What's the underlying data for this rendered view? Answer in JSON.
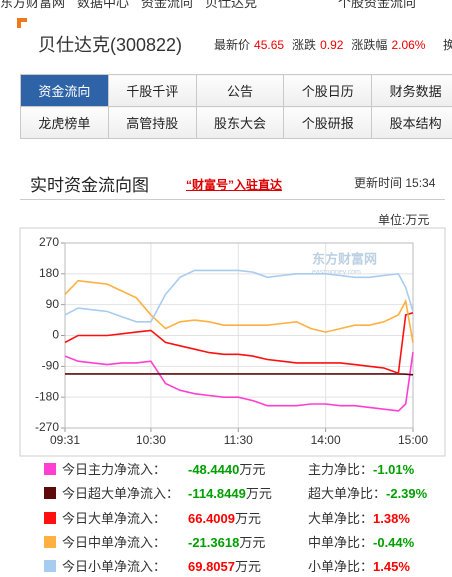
{
  "breadcrumb": [
    "东方财富网",
    "数据中心",
    "资金流向",
    "贝仕达克"
  ],
  "breadcrumb_right": "个股资金流向",
  "header": {
    "title": "贝仕达克(300822)",
    "quotes": [
      {
        "label": "最新价",
        "value": "45.65"
      },
      {
        "label": "涨跌",
        "value": "0.92"
      },
      {
        "label": "涨跌幅",
        "value": "2.06%"
      }
    ],
    "cut_label": "换"
  },
  "nav": [
    [
      "资金流向",
      "千股千评",
      "公告",
      "个股日历",
      "财务数据"
    ],
    [
      "龙虎榜单",
      "高管持股",
      "股东大会",
      "个股研报",
      "股本结构"
    ]
  ],
  "section": {
    "title": "实时资金流向图",
    "link": "“财富号”入驻直达",
    "update_label": "更新时间",
    "update_time": "15:34"
  },
  "chart_data": {
    "type": "line",
    "unit": "单位:万元",
    "watermark": "东方财富网",
    "watermark_sub": "eastmoney.com",
    "x": [
      1,
      10,
      20,
      30,
      40,
      50,
      60,
      70,
      80,
      90,
      100,
      110,
      120,
      130,
      140,
      150,
      160,
      170,
      180,
      190,
      200,
      210,
      220,
      230,
      235,
      240
    ],
    "xlim": [
      1,
      240
    ],
    "xticks": [
      {
        "value": 1,
        "label": "09:31"
      },
      {
        "value": 60,
        "label": "10:30"
      },
      {
        "value": 120,
        "label": "11:30"
      },
      {
        "value": 180,
        "label": "14:00"
      },
      {
        "value": 240,
        "label": "15:00"
      }
    ],
    "ylim": [
      -270,
      270
    ],
    "yticks": [
      -270,
      -180,
      -90,
      0,
      90,
      180,
      270
    ],
    "grid": true,
    "series": [
      {
        "name": "今日主力净流入：",
        "color": "#ff3fd0",
        "values": [
          -60,
          -75,
          -80,
          -85,
          -80,
          -80,
          -75,
          -140,
          -160,
          -170,
          -175,
          -180,
          -180,
          -190,
          -205,
          -205,
          -205,
          -200,
          -200,
          -205,
          -205,
          -210,
          -215,
          -220,
          -200,
          -48.444
        ]
      },
      {
        "name": "今日超大单净流入：",
        "color": "#5c0a0a",
        "values": [
          -112,
          -112,
          -112,
          -112,
          -112,
          -112,
          -112,
          -112,
          -112,
          -112,
          -112,
          -112,
          -112,
          -112,
          -112,
          -112,
          -112,
          -112,
          -112,
          -112,
          -112,
          -112,
          -112,
          -112,
          -113,
          -114.8449
        ]
      },
      {
        "name": "今日大单净流入：",
        "color": "#ff1010",
        "values": [
          -20,
          0,
          0,
          0,
          5,
          10,
          15,
          -20,
          -30,
          -40,
          -50,
          -55,
          -55,
          -60,
          -70,
          -75,
          -80,
          -80,
          -80,
          -80,
          -85,
          -90,
          -95,
          -110,
          60,
          66.4009
        ]
      },
      {
        "name": "今日中单净流入：",
        "color": "#ffb040",
        "values": [
          120,
          160,
          155,
          150,
          130,
          110,
          60,
          20,
          40,
          45,
          40,
          30,
          30,
          30,
          30,
          35,
          40,
          20,
          10,
          20,
          30,
          30,
          40,
          60,
          100,
          -21.3618
        ]
      },
      {
        "name": "今日小单净流入：",
        "color": "#a8ccef",
        "values": [
          60,
          80,
          75,
          70,
          55,
          40,
          40,
          120,
          170,
          190,
          190,
          190,
          190,
          185,
          170,
          175,
          180,
          180,
          180,
          175,
          170,
          170,
          175,
          180,
          140,
          69.8057
        ]
      }
    ]
  },
  "stats": [
    {
      "value": "-48.4440",
      "color": "#00a000",
      "unit": "万元",
      "ratio_label": "主力净比：",
      "ratio": "-1.01%",
      "ratio_color": "#00a000"
    },
    {
      "value": "-114.8449",
      "color": "#00a000",
      "unit": "万元",
      "ratio_label": "超大单净比：",
      "ratio": "-2.39%",
      "ratio_color": "#00a000"
    },
    {
      "value": "66.4009",
      "color": "#ff0000",
      "unit": "万元",
      "ratio_label": "大单净比：",
      "ratio": "1.38%",
      "ratio_color": "#ff0000"
    },
    {
      "value": "-21.3618",
      "color": "#00a000",
      "unit": "万元",
      "ratio_label": "中单净比：",
      "ratio": "-0.44%",
      "ratio_color": "#00a000"
    },
    {
      "value": "69.8057",
      "color": "#ff0000",
      "unit": "万元",
      "ratio_label": "小单净比：",
      "ratio": "1.45%",
      "ratio_color": "#ff0000"
    }
  ]
}
